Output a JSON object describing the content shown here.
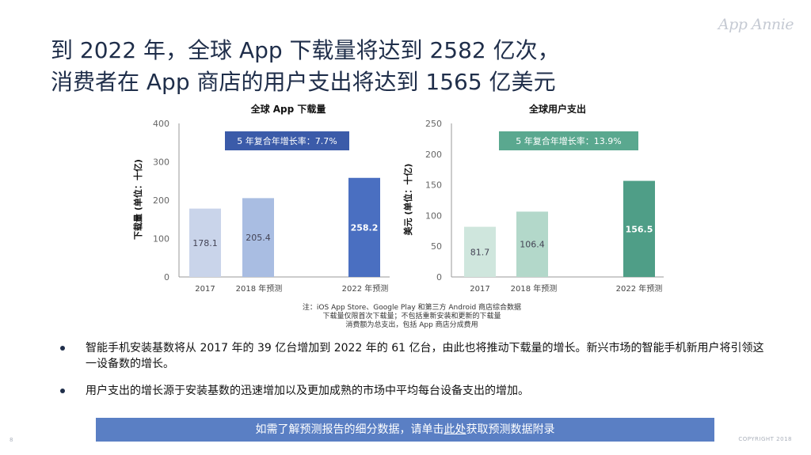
{
  "brand": {
    "logo_text": "App Annie"
  },
  "title": {
    "line1": "到 2022 年，全球 App 下载量将达到 2582 亿次，",
    "line2": "消费者在 App 商店的用户支出将达到 1565 亿美元"
  },
  "chart_data": [
    {
      "type": "bar",
      "title": "全球 App 下载量",
      "ylabel": "下载量 (单位：十亿)",
      "categories": [
        "2017",
        "2018 年预测",
        "2022 年预测"
      ],
      "values": [
        178.1,
        205.4,
        258.2
      ],
      "value_labels": [
        "178.1",
        "205.4",
        "258.2"
      ],
      "yticks": [
        "0",
        "100",
        "200",
        "300",
        "400"
      ],
      "ylim": [
        0,
        400
      ],
      "cagr_label": "5 年复合年增长率：7.7%",
      "colors": [
        "#c9d4ea",
        "#a9bde2",
        "#4a6fc1"
      ],
      "badge_color": "#3b5ba9",
      "grid": false
    },
    {
      "type": "bar",
      "title": "全球用户支出",
      "ylabel": "美元 (单位：十亿)",
      "categories": [
        "2017",
        "2018 年预测",
        "2022 年预测"
      ],
      "values": [
        81.7,
        106.4,
        156.5
      ],
      "value_labels": [
        "81.7",
        "106.4",
        "156.5"
      ],
      "yticks": [
        "0",
        "50",
        "100",
        "150",
        "200",
        "250"
      ],
      "ylim": [
        0,
        250
      ],
      "cagr_label": "5 年复合年增长率：13.9%",
      "colors": [
        "#cfe6dd",
        "#b3d8ca",
        "#4f9e87"
      ],
      "badge_color": "#5aa88f",
      "grid": false
    }
  ],
  "notes": {
    "line1": "注：iOS App Store、Google Play 和第三方 Android 商店综合数据",
    "line2": "下载量仅限首次下载量；不包括重新安装和更新的下载量",
    "line3": "消费额为总支出，包括 App 商店分成费用"
  },
  "bullets": [
    "智能手机安装基数将从 2017 年的 39 亿台增加到 2022 年的 61 亿台，由此也将推动下载量的增长。新兴市场的智能手机新用户将引领这一设备数的增长。",
    "用户支出的增长源于安装基数的迅速增加以及更加成熟的市场中平均每台设备支出的增加。"
  ],
  "banner": {
    "before": "如需了解预测报告的细分数据，请单击",
    "link": "此处",
    "after": "获取预测数据附录"
  },
  "footer": {
    "page": "8",
    "copyright": "COPYRIGHT 2018"
  }
}
